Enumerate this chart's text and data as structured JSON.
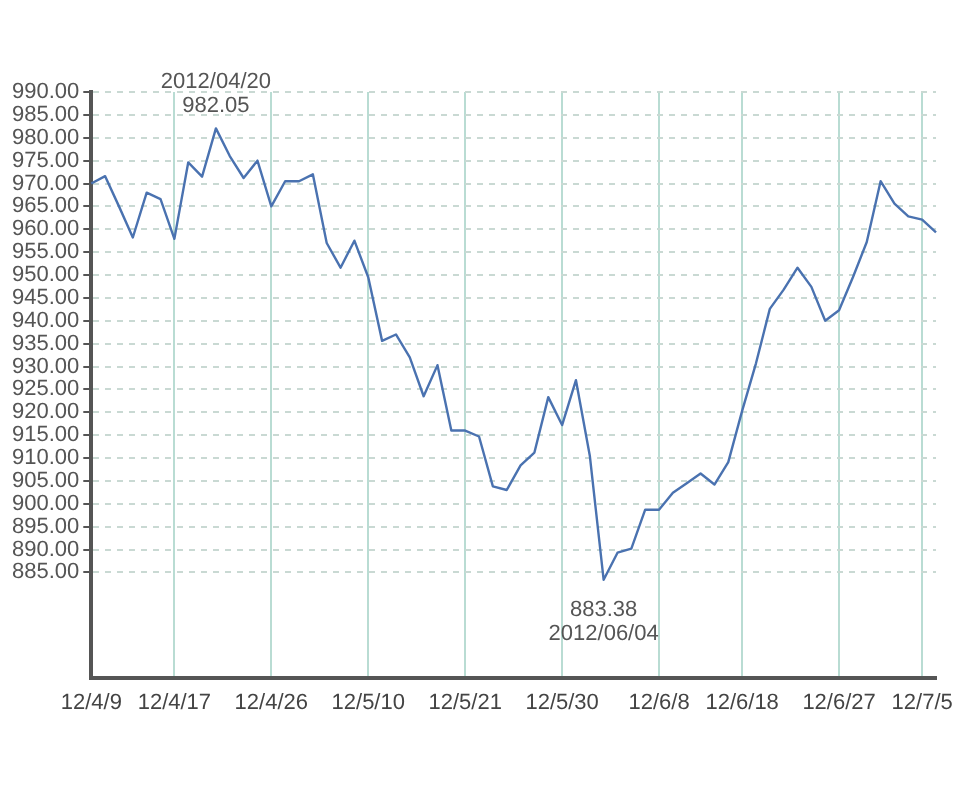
{
  "chart_data": {
    "type": "line",
    "categories": [
      "12/4/9",
      null,
      null,
      null,
      null,
      null,
      "12/4/17",
      null,
      null,
      null,
      null,
      null,
      null,
      "12/4/26",
      null,
      null,
      null,
      null,
      null,
      null,
      "12/5/10",
      null,
      null,
      null,
      null,
      null,
      null,
      "12/5/21",
      null,
      null,
      null,
      null,
      null,
      null,
      "12/5/30",
      null,
      null,
      null,
      null,
      null,
      null,
      "12/6/8",
      null,
      null,
      null,
      null,
      null,
      "12/6/18",
      null,
      null,
      null,
      null,
      null,
      null,
      "12/6/27",
      null,
      null,
      null,
      null,
      null,
      "12/7/5",
      null
    ],
    "series": [
      {
        "color": "#4a72b0",
        "values": [
          970.0,
          971.6,
          965.0,
          958.2,
          968.0,
          966.6,
          957.9,
          974.6,
          971.5,
          982.05,
          976.0,
          971.2,
          975.0,
          965.0,
          970.5,
          970.5,
          972.0,
          957.0,
          951.6,
          957.5,
          949.5,
          935.6,
          937.0,
          932.0,
          923.5,
          930.3,
          916.0,
          916.0,
          914.7,
          903.8,
          903.0,
          908.4,
          911.2,
          923.3,
          917.2,
          927.0,
          910.5,
          883.38,
          889.3,
          890.2,
          898.7,
          898.7,
          902.4,
          904.5,
          906.6,
          904.2,
          909.1,
          920.3,
          930.7,
          942.6,
          946.8,
          951.6,
          947.4,
          940.0,
          942.3,
          949.5,
          957.2,
          970.5,
          965.6,
          962.8,
          962.1,
          959.3
        ]
      }
    ],
    "ylim": [
      862,
      990
    ],
    "yticks": [
      {
        "value": 885,
        "label": "885.00"
      },
      {
        "value": 890,
        "label": "890.00"
      },
      {
        "value": 895,
        "label": "895.00"
      },
      {
        "value": 900,
        "label": "900.00"
      },
      {
        "value": 905,
        "label": "905.00"
      },
      {
        "value": 910,
        "label": "910.00"
      },
      {
        "value": 915,
        "label": "915.00"
      },
      {
        "value": 920,
        "label": "920.00"
      },
      {
        "value": 925,
        "label": "925.00"
      },
      {
        "value": 930,
        "label": "930.00"
      },
      {
        "value": 935,
        "label": "935.00"
      },
      {
        "value": 940,
        "label": "940.00"
      },
      {
        "value": 945,
        "label": "945.00"
      },
      {
        "value": 950,
        "label": "950.00"
      },
      {
        "value": 955,
        "label": "955.00"
      },
      {
        "value": 960,
        "label": "960.00"
      },
      {
        "value": 965,
        "label": "965.00"
      },
      {
        "value": 970,
        "label": "970.00"
      },
      {
        "value": 975,
        "label": "975.00"
      },
      {
        "value": 980,
        "label": "980.00"
      },
      {
        "value": 985,
        "label": "985.00"
      },
      {
        "value": 990,
        "label": "990.00"
      }
    ],
    "annotations": [
      {
        "text": "2012/04/20\n982.05",
        "y": 982.05
      },
      {
        "text": "883.38\n2012/06/04",
        "y": 883.38
      }
    ],
    "grid": true,
    "marker": "none",
    "line_style": "solid",
    "legend": false
  }
}
